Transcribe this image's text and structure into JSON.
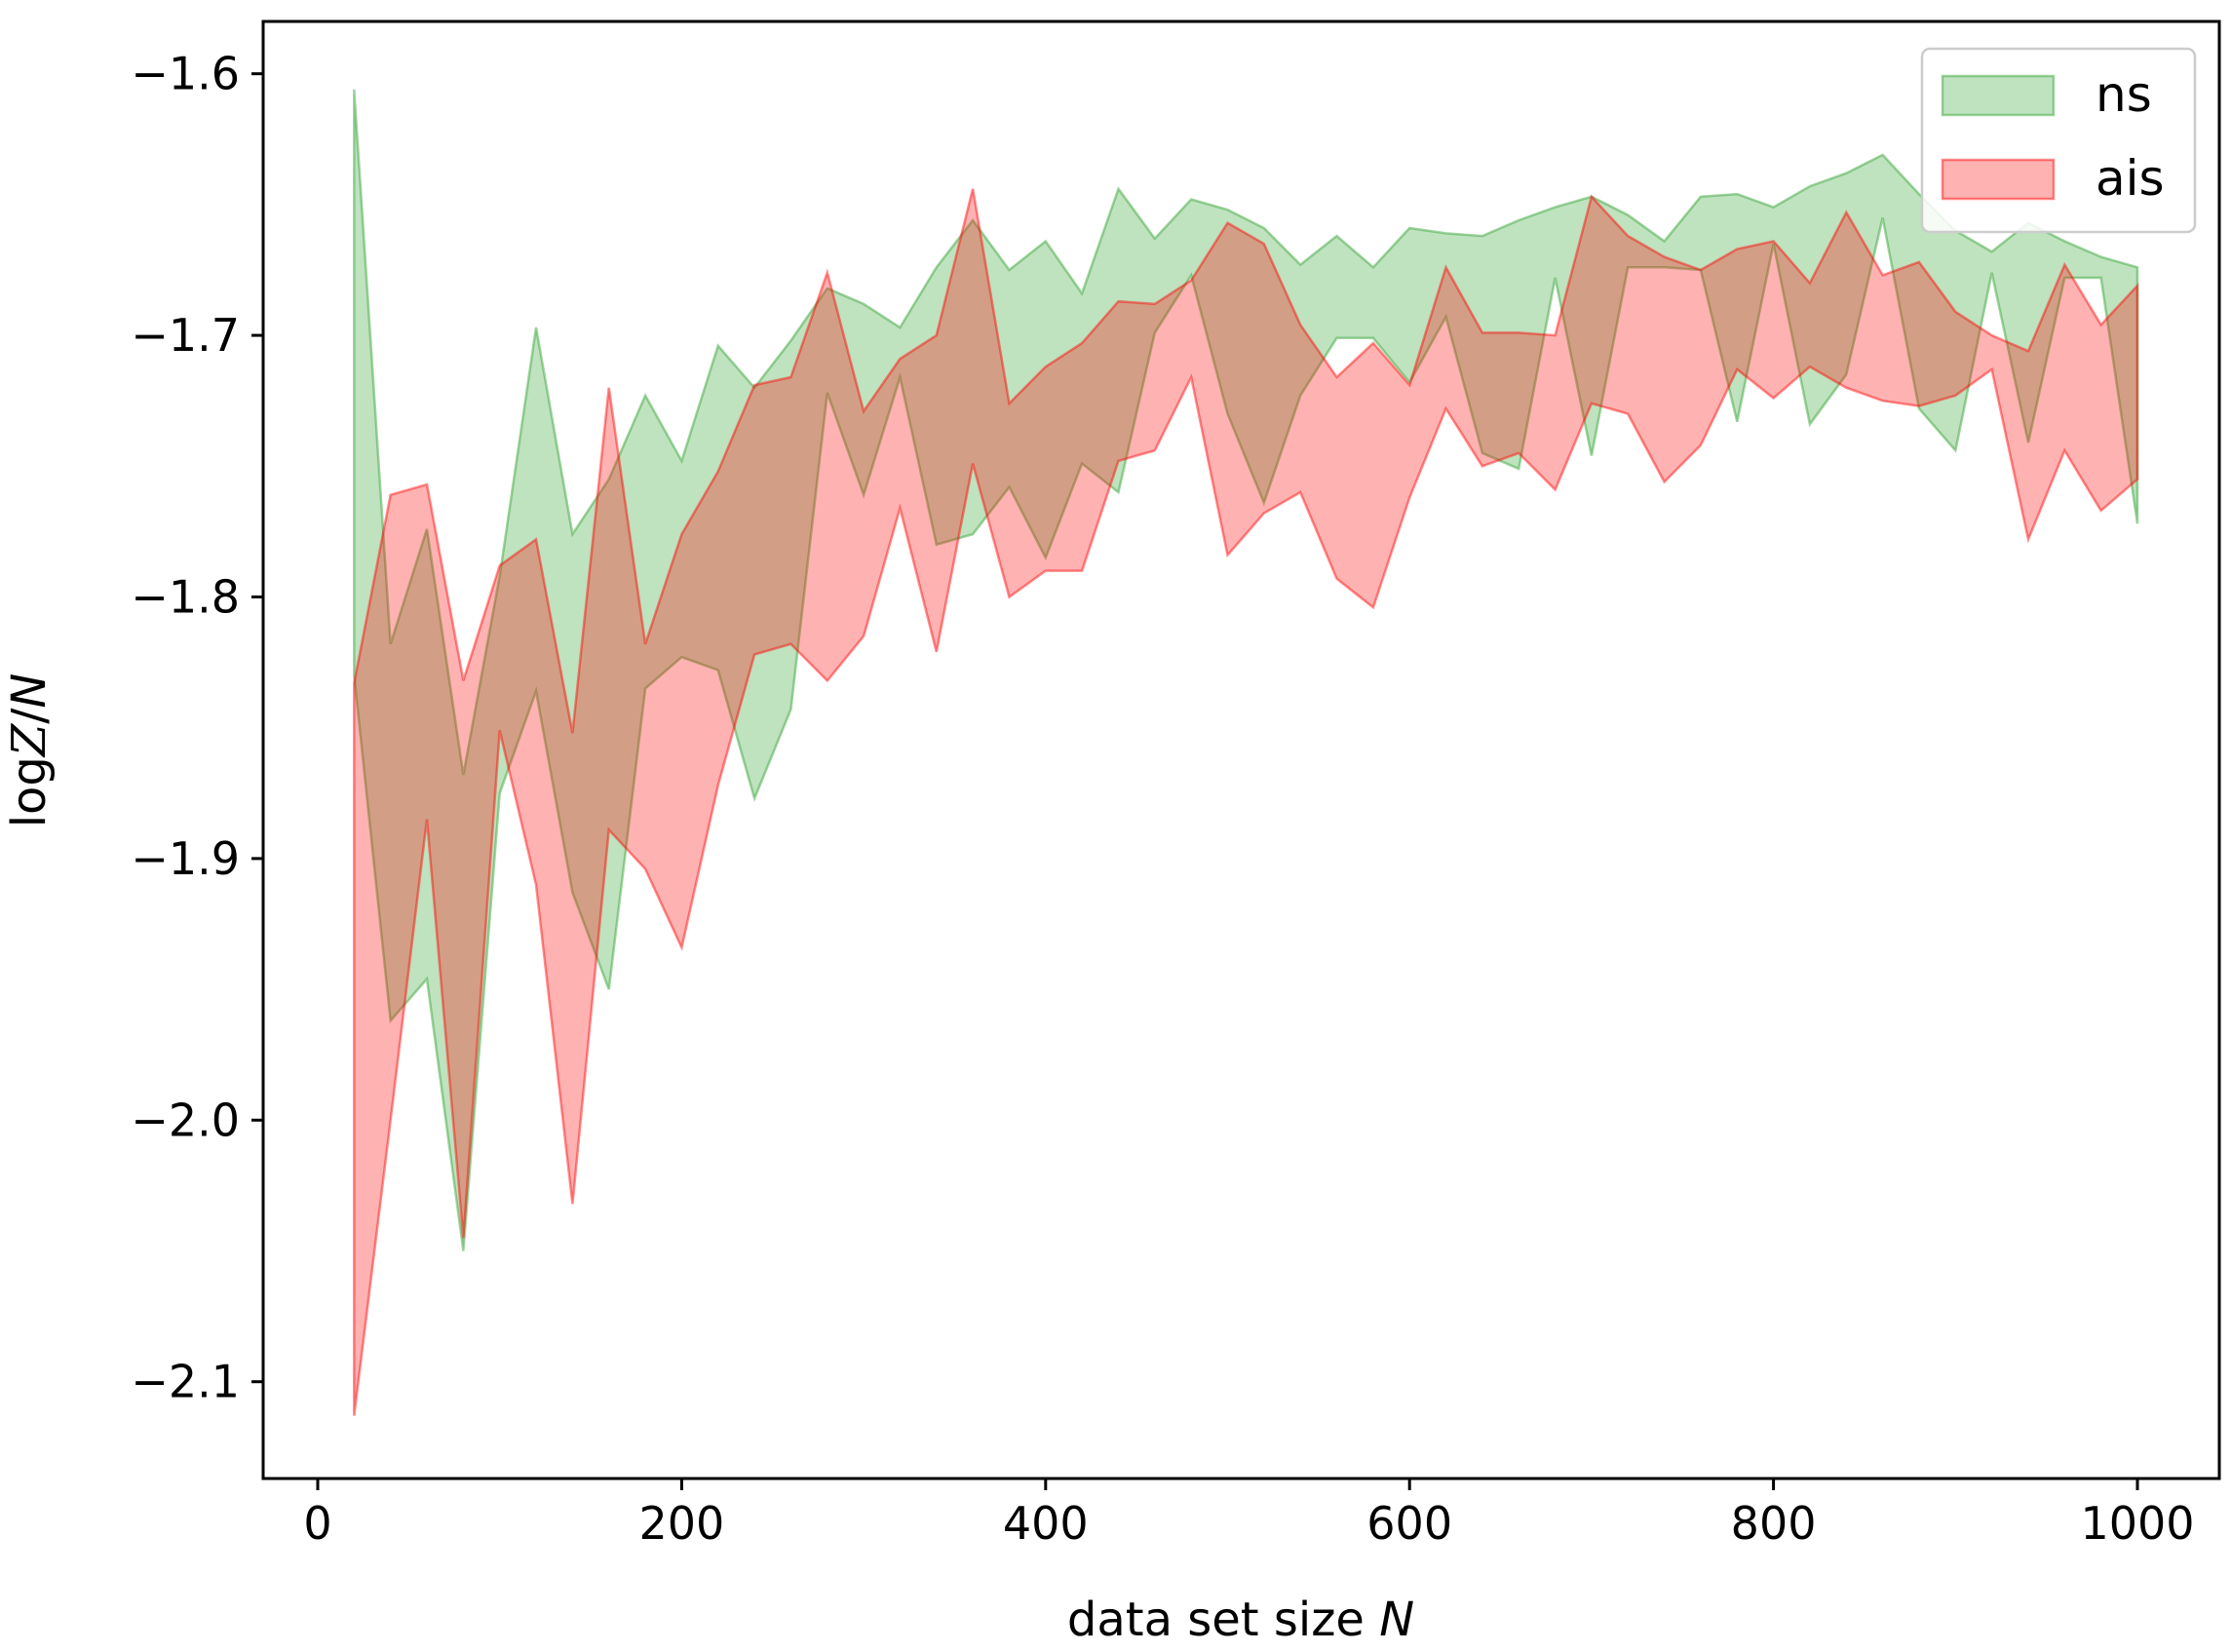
{
  "chart_data": {
    "type": "area",
    "xlabel": "data set size N",
    "ylabel": "log Z / N",
    "xlim": [
      -30,
      1045
    ],
    "ylim": [
      -2.137,
      -1.58
    ],
    "xticks": [
      0,
      200,
      400,
      600,
      800,
      1000
    ],
    "yticks": [
      -2.1,
      -2.0,
      -1.9,
      -1.8,
      -1.7,
      -1.6
    ],
    "xtick_labels": [
      "0",
      "200",
      "400",
      "600",
      "800",
      "1000"
    ],
    "ytick_labels": [
      "−2.1",
      "−2.0",
      "−1.9",
      "−1.8",
      "−1.7",
      "−1.6"
    ],
    "legend_position": "top-right",
    "x": [
      20,
      40,
      60,
      80,
      100,
      120,
      140,
      160,
      180,
      200,
      220,
      240,
      260,
      280,
      300,
      320,
      340,
      360,
      380,
      400,
      420,
      440,
      460,
      480,
      500,
      520,
      540,
      560,
      580,
      600,
      620,
      640,
      660,
      680,
      700,
      720,
      740,
      760,
      780,
      800,
      820,
      840,
      860,
      880,
      900,
      920,
      940,
      960,
      980,
      1000
    ],
    "series": [
      {
        "name": "ns",
        "color": "#2ca02c",
        "upper": [
          -1.606,
          -1.818,
          -1.774,
          -1.868,
          -1.792,
          -1.697,
          -1.776,
          -1.755,
          -1.723,
          -1.748,
          -1.704,
          -1.72,
          -1.702,
          -1.682,
          -1.688,
          -1.697,
          -1.674,
          -1.656,
          -1.675,
          -1.664,
          -1.684,
          -1.644,
          -1.663,
          -1.648,
          -1.652,
          -1.659,
          -1.673,
          -1.662,
          -1.674,
          -1.659,
          -1.661,
          -1.662,
          -1.656,
          -1.651,
          -1.647,
          -1.654,
          -1.664,
          -1.647,
          -1.646,
          -1.651,
          -1.643,
          -1.638,
          -1.631,
          -1.646,
          -1.66,
          -1.668,
          -1.657,
          -1.664,
          -1.67,
          -1.674
        ],
        "lower": [
          -1.83,
          -1.962,
          -1.946,
          -2.05,
          -1.875,
          -1.836,
          -1.913,
          -1.95,
          -1.835,
          -1.823,
          -1.828,
          -1.877,
          -1.843,
          -1.722,
          -1.761,
          -1.716,
          -1.78,
          -1.776,
          -1.758,
          -1.785,
          -1.749,
          -1.76,
          -1.699,
          -1.677,
          -1.73,
          -1.764,
          -1.723,
          -1.701,
          -1.701,
          -1.718,
          -1.693,
          -1.745,
          -1.751,
          -1.678,
          -1.746,
          -1.674,
          -1.674,
          -1.675,
          -1.733,
          -1.665,
          -1.734,
          -1.715,
          -1.655,
          -1.728,
          -1.744,
          -1.676,
          -1.741,
          -1.678,
          -1.678,
          -1.772
        ]
      },
      {
        "name": "ais",
        "color": "#ff0000",
        "upper": [
          -1.833,
          -1.761,
          -1.757,
          -1.832,
          -1.788,
          -1.778,
          -1.852,
          -1.72,
          -1.818,
          -1.776,
          -1.752,
          -1.719,
          -1.716,
          -1.676,
          -1.729,
          -1.709,
          -1.7,
          -1.644,
          -1.726,
          -1.712,
          -1.703,
          -1.687,
          -1.688,
          -1.679,
          -1.657,
          -1.665,
          -1.696,
          -1.716,
          -1.703,
          -1.719,
          -1.674,
          -1.699,
          -1.699,
          -1.7,
          -1.647,
          -1.662,
          -1.67,
          -1.675,
          -1.667,
          -1.664,
          -1.68,
          -1.653,
          -1.677,
          -1.672,
          -1.691,
          -1.7,
          -1.706,
          -1.673,
          -1.696,
          -1.681
        ],
        "lower": [
          -2.113,
          -2.0,
          -1.885,
          -2.045,
          -1.851,
          -1.91,
          -2.032,
          -1.889,
          -1.904,
          -1.934,
          -1.872,
          -1.822,
          -1.818,
          -1.832,
          -1.815,
          -1.766,
          -1.821,
          -1.749,
          -1.8,
          -1.79,
          -1.79,
          -1.748,
          -1.744,
          -1.716,
          -1.784,
          -1.768,
          -1.76,
          -1.793,
          -1.804,
          -1.762,
          -1.728,
          -1.75,
          -1.745,
          -1.759,
          -1.726,
          -1.73,
          -1.756,
          -1.742,
          -1.713,
          -1.724,
          -1.712,
          -1.72,
          -1.725,
          -1.727,
          -1.723,
          -1.713,
          -1.778,
          -1.744,
          -1.767,
          -1.755
        ]
      }
    ]
  }
}
